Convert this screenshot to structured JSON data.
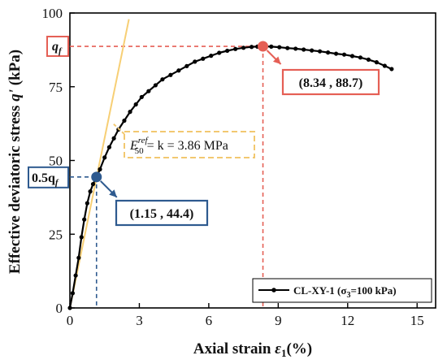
{
  "chart_data": {
    "type": "line",
    "xlabel_main": "Axial strain ",
    "xlabel_sym": "ε",
    "xlabel_sub": "1",
    "xlabel_unit": "(%)",
    "ylabel_main": "Effective deviatoric stress ",
    "ylabel_sym": "q'",
    "ylabel_unit": " (kPa)",
    "xlim": [
      0,
      15.8
    ],
    "ylim": [
      0,
      100
    ],
    "xticks": [
      0,
      3,
      6,
      9,
      12,
      15
    ],
    "yticks": [
      0,
      25,
      50,
      75,
      100
    ],
    "grid": false,
    "legend_position": "bottom-right",
    "series": [
      {
        "name_main": "CL-XY-1 (σ",
        "name_sub": "3",
        "name_tail": "=100 kPa)",
        "color": "#000000",
        "x": [
          0.0,
          0.12,
          0.25,
          0.38,
          0.5,
          0.62,
          0.75,
          0.88,
          1.0,
          1.15,
          1.3,
          1.5,
          1.7,
          1.9,
          2.1,
          2.35,
          2.6,
          2.85,
          3.1,
          3.4,
          3.7,
          4.0,
          4.35,
          4.7,
          5.05,
          5.4,
          5.75,
          6.1,
          6.45,
          6.8,
          7.15,
          7.5,
          7.85,
          8.1,
          8.34,
          8.7,
          9.05,
          9.4,
          9.75,
          10.1,
          10.45,
          10.8,
          11.15,
          11.5,
          11.85,
          12.2,
          12.55,
          12.9,
          13.25,
          13.6,
          13.9
        ],
        "y": [
          0.0,
          5.0,
          11.0,
          17.0,
          24.0,
          30.0,
          35.5,
          39.5,
          42.0,
          44.4,
          47.0,
          51.0,
          54.5,
          57.5,
          60.5,
          63.5,
          66.5,
          69.0,
          71.5,
          73.5,
          75.5,
          77.5,
          79.0,
          80.5,
          82.0,
          83.5,
          84.5,
          85.5,
          86.5,
          87.2,
          87.8,
          88.2,
          88.5,
          88.6,
          88.7,
          88.6,
          88.4,
          88.1,
          87.9,
          87.6,
          87.3,
          87.0,
          86.6,
          86.2,
          85.9,
          85.4,
          84.9,
          84.2,
          83.3,
          82.1,
          81.0
        ]
      }
    ],
    "tangent_line": {
      "color": "#f7cf75",
      "x": [
        0.0,
        2.55
      ],
      "y": [
        0.0,
        97.9
      ]
    },
    "peak_point": {
      "x": 8.34,
      "y": 88.7,
      "label": "(8.34 , 88.7)",
      "marker_label": "q",
      "marker_sub": "f",
      "color": "#e55f55"
    },
    "half_point": {
      "x": 1.15,
      "y": 44.4,
      "label": "(1.15 , 44.4)",
      "marker_label": "0.5q",
      "marker_sub": "f",
      "color": "#2e5a8f"
    },
    "modulus_annotation": {
      "e": "E",
      "sup": "ref",
      "sub": "50",
      "text": " = k = 3.86 MPa",
      "border_color": "#f2c870"
    }
  }
}
